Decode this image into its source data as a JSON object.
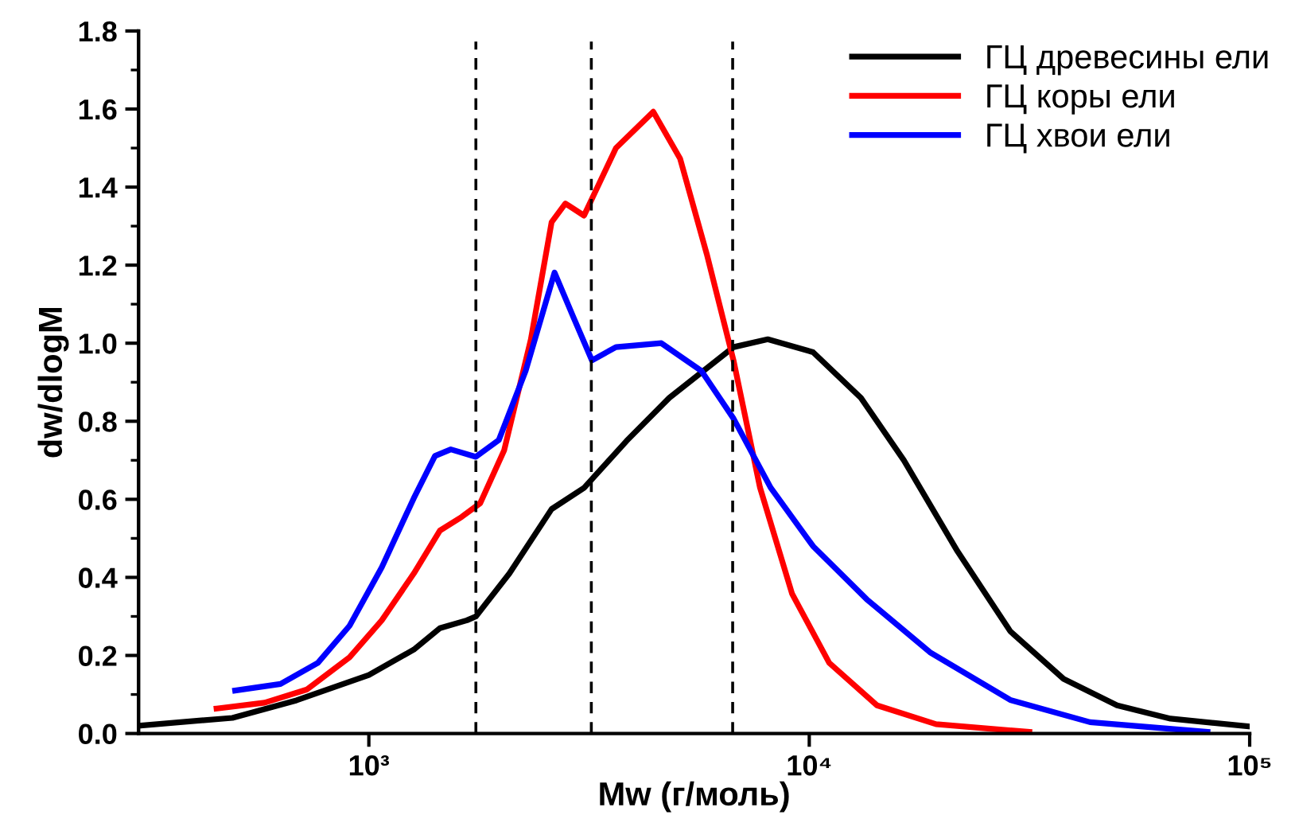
{
  "chart_data": {
    "type": "line",
    "xlabel": "Mw (г/моль)",
    "ylabel": "dw/dlogM",
    "log": "x",
    "xlim": [
      300,
      100000
    ],
    "xticks": [
      {
        "value": 1000,
        "label": "10³"
      },
      {
        "value": 10000,
        "label": "10⁴"
      },
      {
        "value": 100000,
        "label": "10⁵"
      }
    ],
    "ylim": [
      0,
      1.8
    ],
    "yticks": [
      {
        "value": 0,
        "label": "0.0"
      },
      {
        "value": 0.1,
        "label": null
      },
      {
        "value": 0.2,
        "label": "0.2"
      },
      {
        "value": 0.3,
        "label": null
      },
      {
        "value": 0.4,
        "label": "0.4"
      },
      {
        "value": 0.5,
        "label": null
      },
      {
        "value": 0.6,
        "label": "0.6"
      },
      {
        "value": 0.7,
        "label": null
      },
      {
        "value": 0.8,
        "label": "0.8"
      },
      {
        "value": 0.9,
        "label": null
      },
      {
        "value": 1.0,
        "label": "1.0"
      },
      {
        "value": 1.1,
        "label": null
      },
      {
        "value": 1.2,
        "label": "1.2"
      },
      {
        "value": 1.3,
        "label": null
      },
      {
        "value": 1.4,
        "label": "1.4"
      },
      {
        "value": 1.5,
        "label": null
      },
      {
        "value": 1.6,
        "label": "1.6"
      },
      {
        "value": 1.7,
        "label": null
      },
      {
        "value": 1.8,
        "label": "1.8"
      }
    ],
    "grid": false,
    "legend": "top right",
    "marker": "none",
    "line_style": "solid",
    "ref_lines": [
      {
        "axis": "x",
        "value": 1750,
        "color": "#000000",
        "line_style": "dashed"
      },
      {
        "axis": "x",
        "value": 3200,
        "color": "#000000",
        "line_style": "dashed"
      },
      {
        "axis": "x",
        "value": 6700,
        "color": "#000000",
        "line_style": "dashed"
      }
    ],
    "series": [
      {
        "name": "ГЦ древесины ели",
        "color": "#000000",
        "x": [
          300,
          490,
          685,
          1000,
          1265,
          1450,
          1670,
          1750,
          2085,
          2600,
          3085,
          3850,
          4810,
          6730,
          8050,
          10200,
          13100,
          16400,
          21700,
          28600,
          37800,
          50000,
          66100,
          100000
        ],
        "values": [
          0.02,
          0.04,
          0.085,
          0.15,
          0.215,
          0.27,
          0.29,
          0.3,
          0.41,
          0.575,
          0.63,
          0.75,
          0.86,
          0.99,
          1.01,
          0.977,
          0.86,
          0.7,
          0.467,
          0.262,
          0.14,
          0.072,
          0.038,
          0.018
        ]
      },
      {
        "name": "ГЦ коры ели",
        "color": "#ff0000",
        "x": [
          451,
          580,
          724,
          904,
          1070,
          1265,
          1450,
          1625,
          1790,
          2028,
          2333,
          2600,
          2795,
          3080,
          3640,
          4425,
          5090,
          5850,
          6730,
          7730,
          9140,
          11100,
          14250,
          19400,
          31600
        ],
        "values": [
          0.064,
          0.079,
          0.113,
          0.195,
          0.29,
          0.41,
          0.52,
          0.555,
          0.59,
          0.725,
          1.01,
          1.31,
          1.358,
          1.327,
          1.5,
          1.593,
          1.473,
          1.229,
          0.956,
          0.63,
          0.358,
          0.181,
          0.072,
          0.024,
          0.004
        ]
      },
      {
        "name": "ГЦ хвои ели",
        "color": "#0000ff",
        "x": [
          497,
          630,
          766,
          904,
          1070,
          1265,
          1413,
          1535,
          1750,
          1973,
          2270,
          2640,
          2918,
          3210,
          3640,
          4615,
          5690,
          6730,
          8170,
          10200,
          13500,
          18800,
          28600,
          43400,
          80200
        ],
        "values": [
          0.11,
          0.127,
          0.181,
          0.276,
          0.426,
          0.603,
          0.711,
          0.728,
          0.709,
          0.752,
          0.929,
          1.181,
          1.065,
          0.956,
          0.99,
          1.0,
          0.929,
          0.807,
          0.63,
          0.48,
          0.344,
          0.208,
          0.086,
          0.029,
          0.004
        ]
      }
    ]
  }
}
